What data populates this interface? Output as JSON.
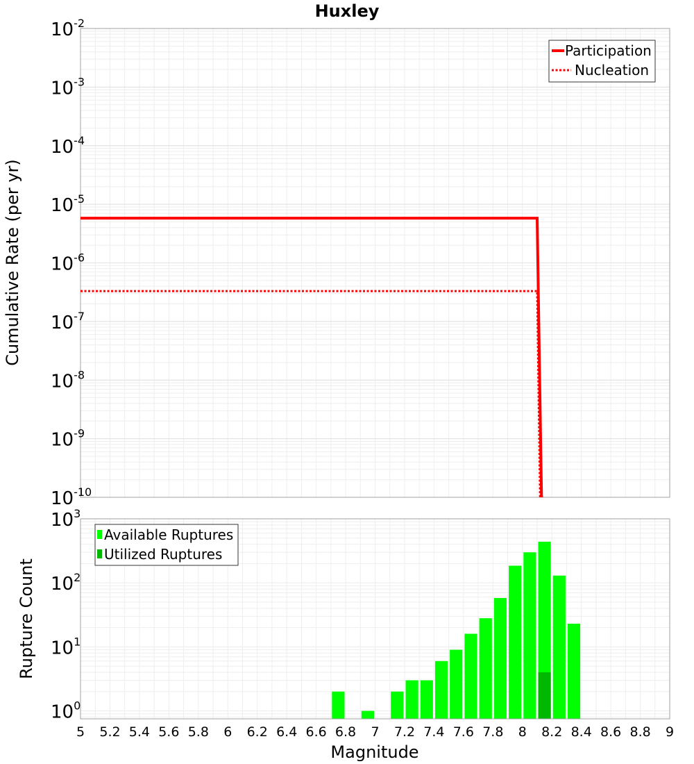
{
  "chart_data": [
    {
      "type": "line",
      "title": "Huxley",
      "ylabel": "Cumulative Rate (per yr)",
      "xlabel": "Magnitude",
      "xlim": [
        5,
        9
      ],
      "ylim_exponents": [
        -10,
        -2
      ],
      "yscale": "log",
      "y_ticks": [
        {
          "base": "10",
          "exp": "-2"
        },
        {
          "base": "10",
          "exp": "-3"
        },
        {
          "base": "10",
          "exp": "-4"
        },
        {
          "base": "10",
          "exp": "-5"
        },
        {
          "base": "10",
          "exp": "-6"
        },
        {
          "base": "10",
          "exp": "-7"
        },
        {
          "base": "10",
          "exp": "-8"
        },
        {
          "base": "10",
          "exp": "-9"
        },
        {
          "base": "10",
          "exp": "-10"
        }
      ],
      "legend_position": "top-right",
      "series": [
        {
          "name": "Participation",
          "style": "solid",
          "color": "#ff0000",
          "points": [
            [
              5.0,
              5.8e-06
            ],
            [
              8.1,
              5.8e-06
            ],
            [
              8.13,
              1e-10
            ]
          ]
        },
        {
          "name": "Nucleation",
          "style": "dotted",
          "color": "#ff0000",
          "points": [
            [
              5.0,
              3.3e-07
            ],
            [
              8.1,
              3.3e-07
            ],
            [
              8.12,
              1e-10
            ]
          ]
        }
      ]
    },
    {
      "type": "bar",
      "ylabel": "Rupture Count",
      "yscale": "log",
      "ylim": [
        0.75,
        1000
      ],
      "y_ticks": [
        {
          "base": "10",
          "exp": "3"
        },
        {
          "base": "10",
          "exp": "2"
        },
        {
          "base": "10",
          "exp": "1"
        },
        {
          "base": "10",
          "exp": "0"
        }
      ],
      "legend_position": "top-left",
      "bin_width": 0.1,
      "series": [
        {
          "name": "Available Ruptures",
          "color": "#00ff00",
          "x": [
            6.75,
            6.95,
            7.15,
            7.25,
            7.35,
            7.45,
            7.55,
            7.65,
            7.75,
            7.85,
            7.95,
            8.05,
            8.15,
            8.25,
            8.35
          ],
          "values": [
            2,
            1,
            2,
            3,
            3,
            6,
            9,
            16,
            28,
            58,
            185,
            300,
            440,
            130,
            23
          ]
        },
        {
          "name": "Utilized Ruptures",
          "color": "#00b800",
          "x": [
            8.15
          ],
          "values": [
            4
          ]
        }
      ]
    }
  ],
  "x_ticks": [
    "5",
    "5.2",
    "5.4",
    "5.6",
    "5.8",
    "6",
    "6.2",
    "6.4",
    "6.6",
    "6.8",
    "7",
    "7.2",
    "7.4",
    "7.6",
    "7.8",
    "8",
    "8.2",
    "8.4",
    "8.6",
    "8.8",
    "9"
  ]
}
